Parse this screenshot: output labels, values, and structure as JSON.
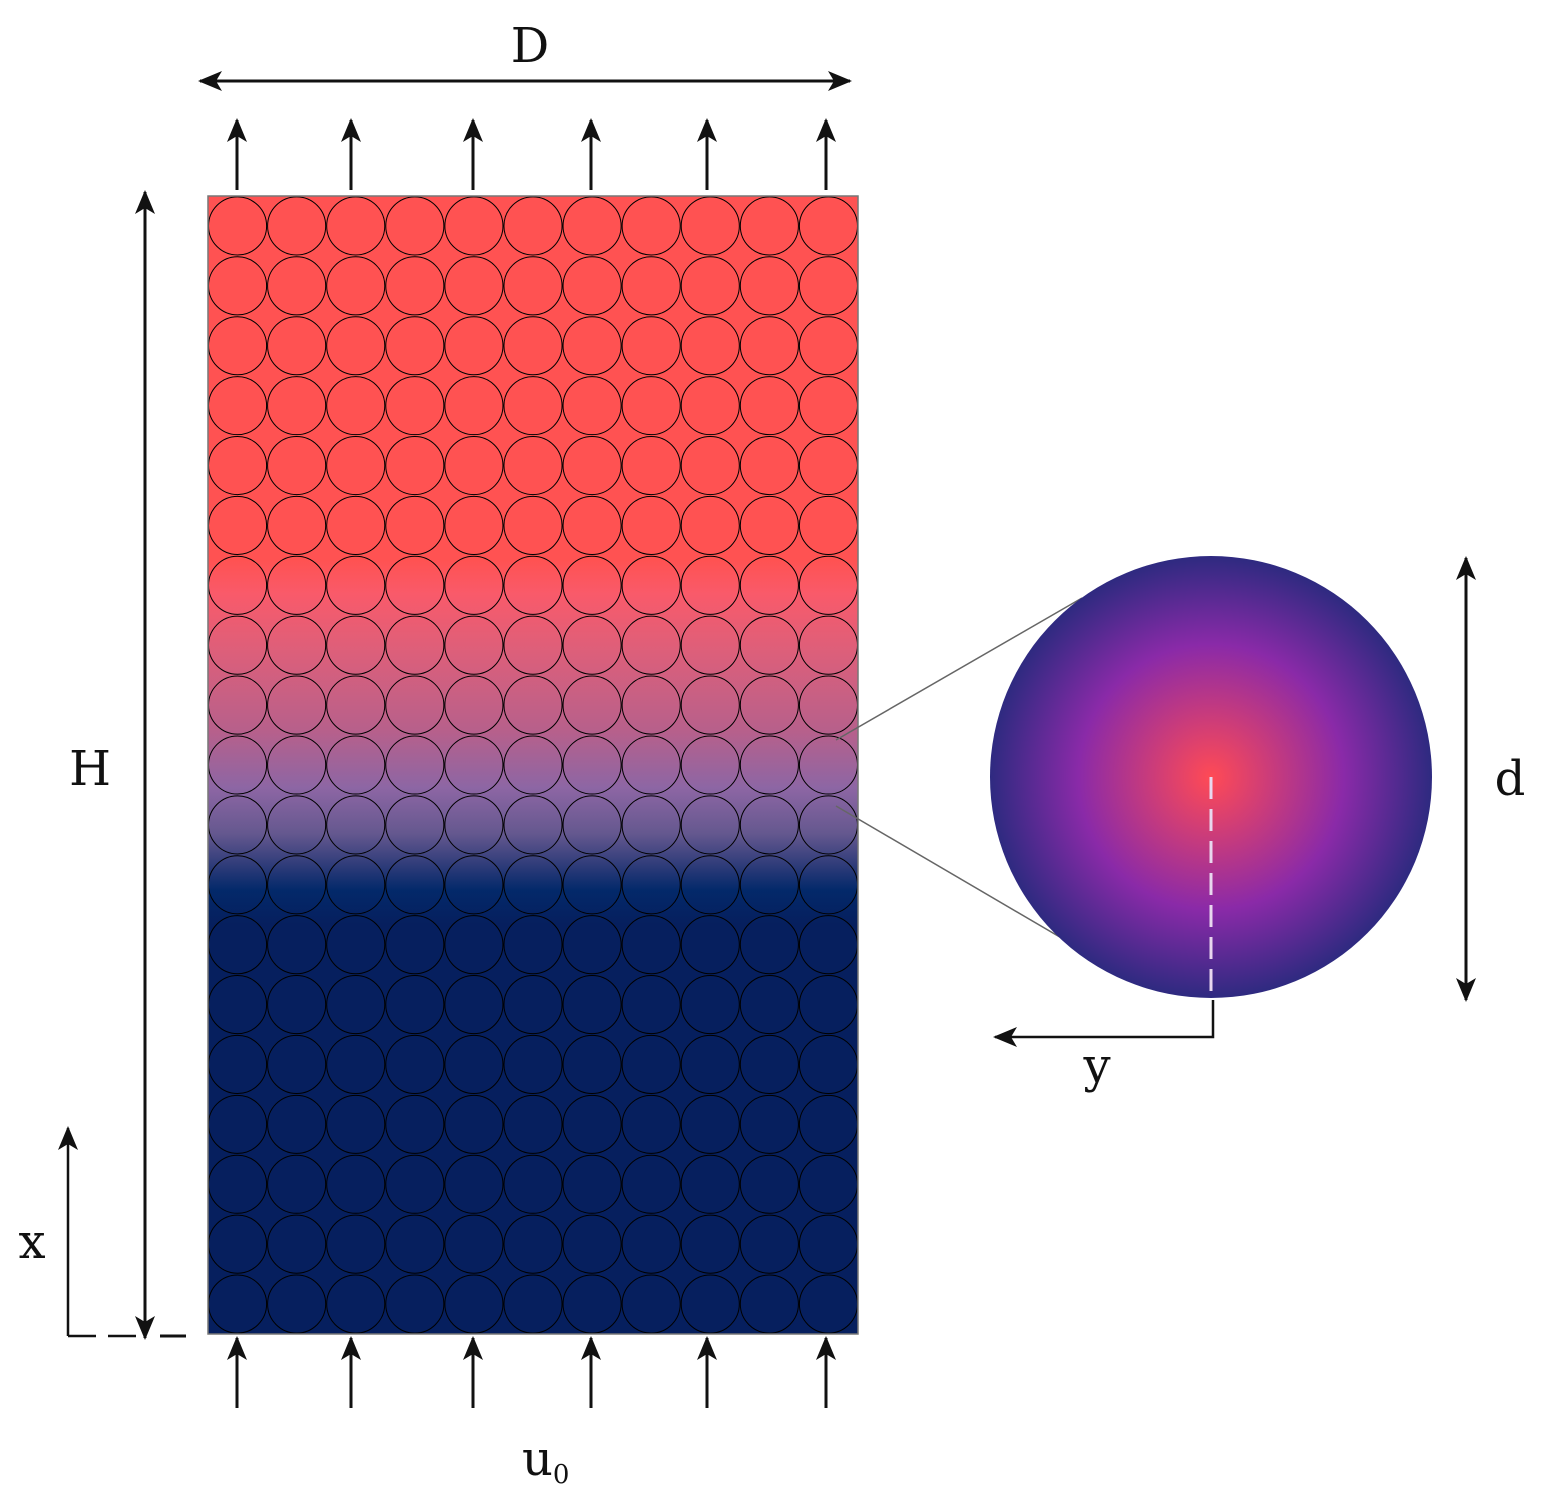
{
  "labels": {
    "width": "D",
    "height": "H",
    "axial_coordinate": "x",
    "particle_diameter": "d",
    "radial_coordinate": "y",
    "inlet_velocity": "u",
    "inlet_velocity_subscript": "0"
  },
  "bed": {
    "columns": 11,
    "rows": 19,
    "gradient_stops": [
      {
        "offset": 0.0,
        "color": "#ff5252"
      },
      {
        "offset": 0.32,
        "color": "#ff5252"
      },
      {
        "offset": 0.35,
        "color": "#f95a6a"
      },
      {
        "offset": 0.4,
        "color": "#dd5f7a"
      },
      {
        "offset": 0.47,
        "color": "#b7608b"
      },
      {
        "offset": 0.52,
        "color": "#8d66a4"
      },
      {
        "offset": 0.56,
        "color": "#65588f"
      },
      {
        "offset": 0.59,
        "color": "#2b3a78"
      },
      {
        "offset": 0.61,
        "color": "#03296a"
      },
      {
        "offset": 0.64,
        "color": "#061f5e"
      },
      {
        "offset": 1.0,
        "color": "#061f5e"
      }
    ]
  },
  "particle": {
    "center_color": "#ff4a55",
    "mid_color": "#8a2aa8",
    "edge_color": "#2e2a80"
  },
  "colors": {
    "arrow": "#111111",
    "outline": "#000000",
    "centerline": "#e8d7ee"
  }
}
